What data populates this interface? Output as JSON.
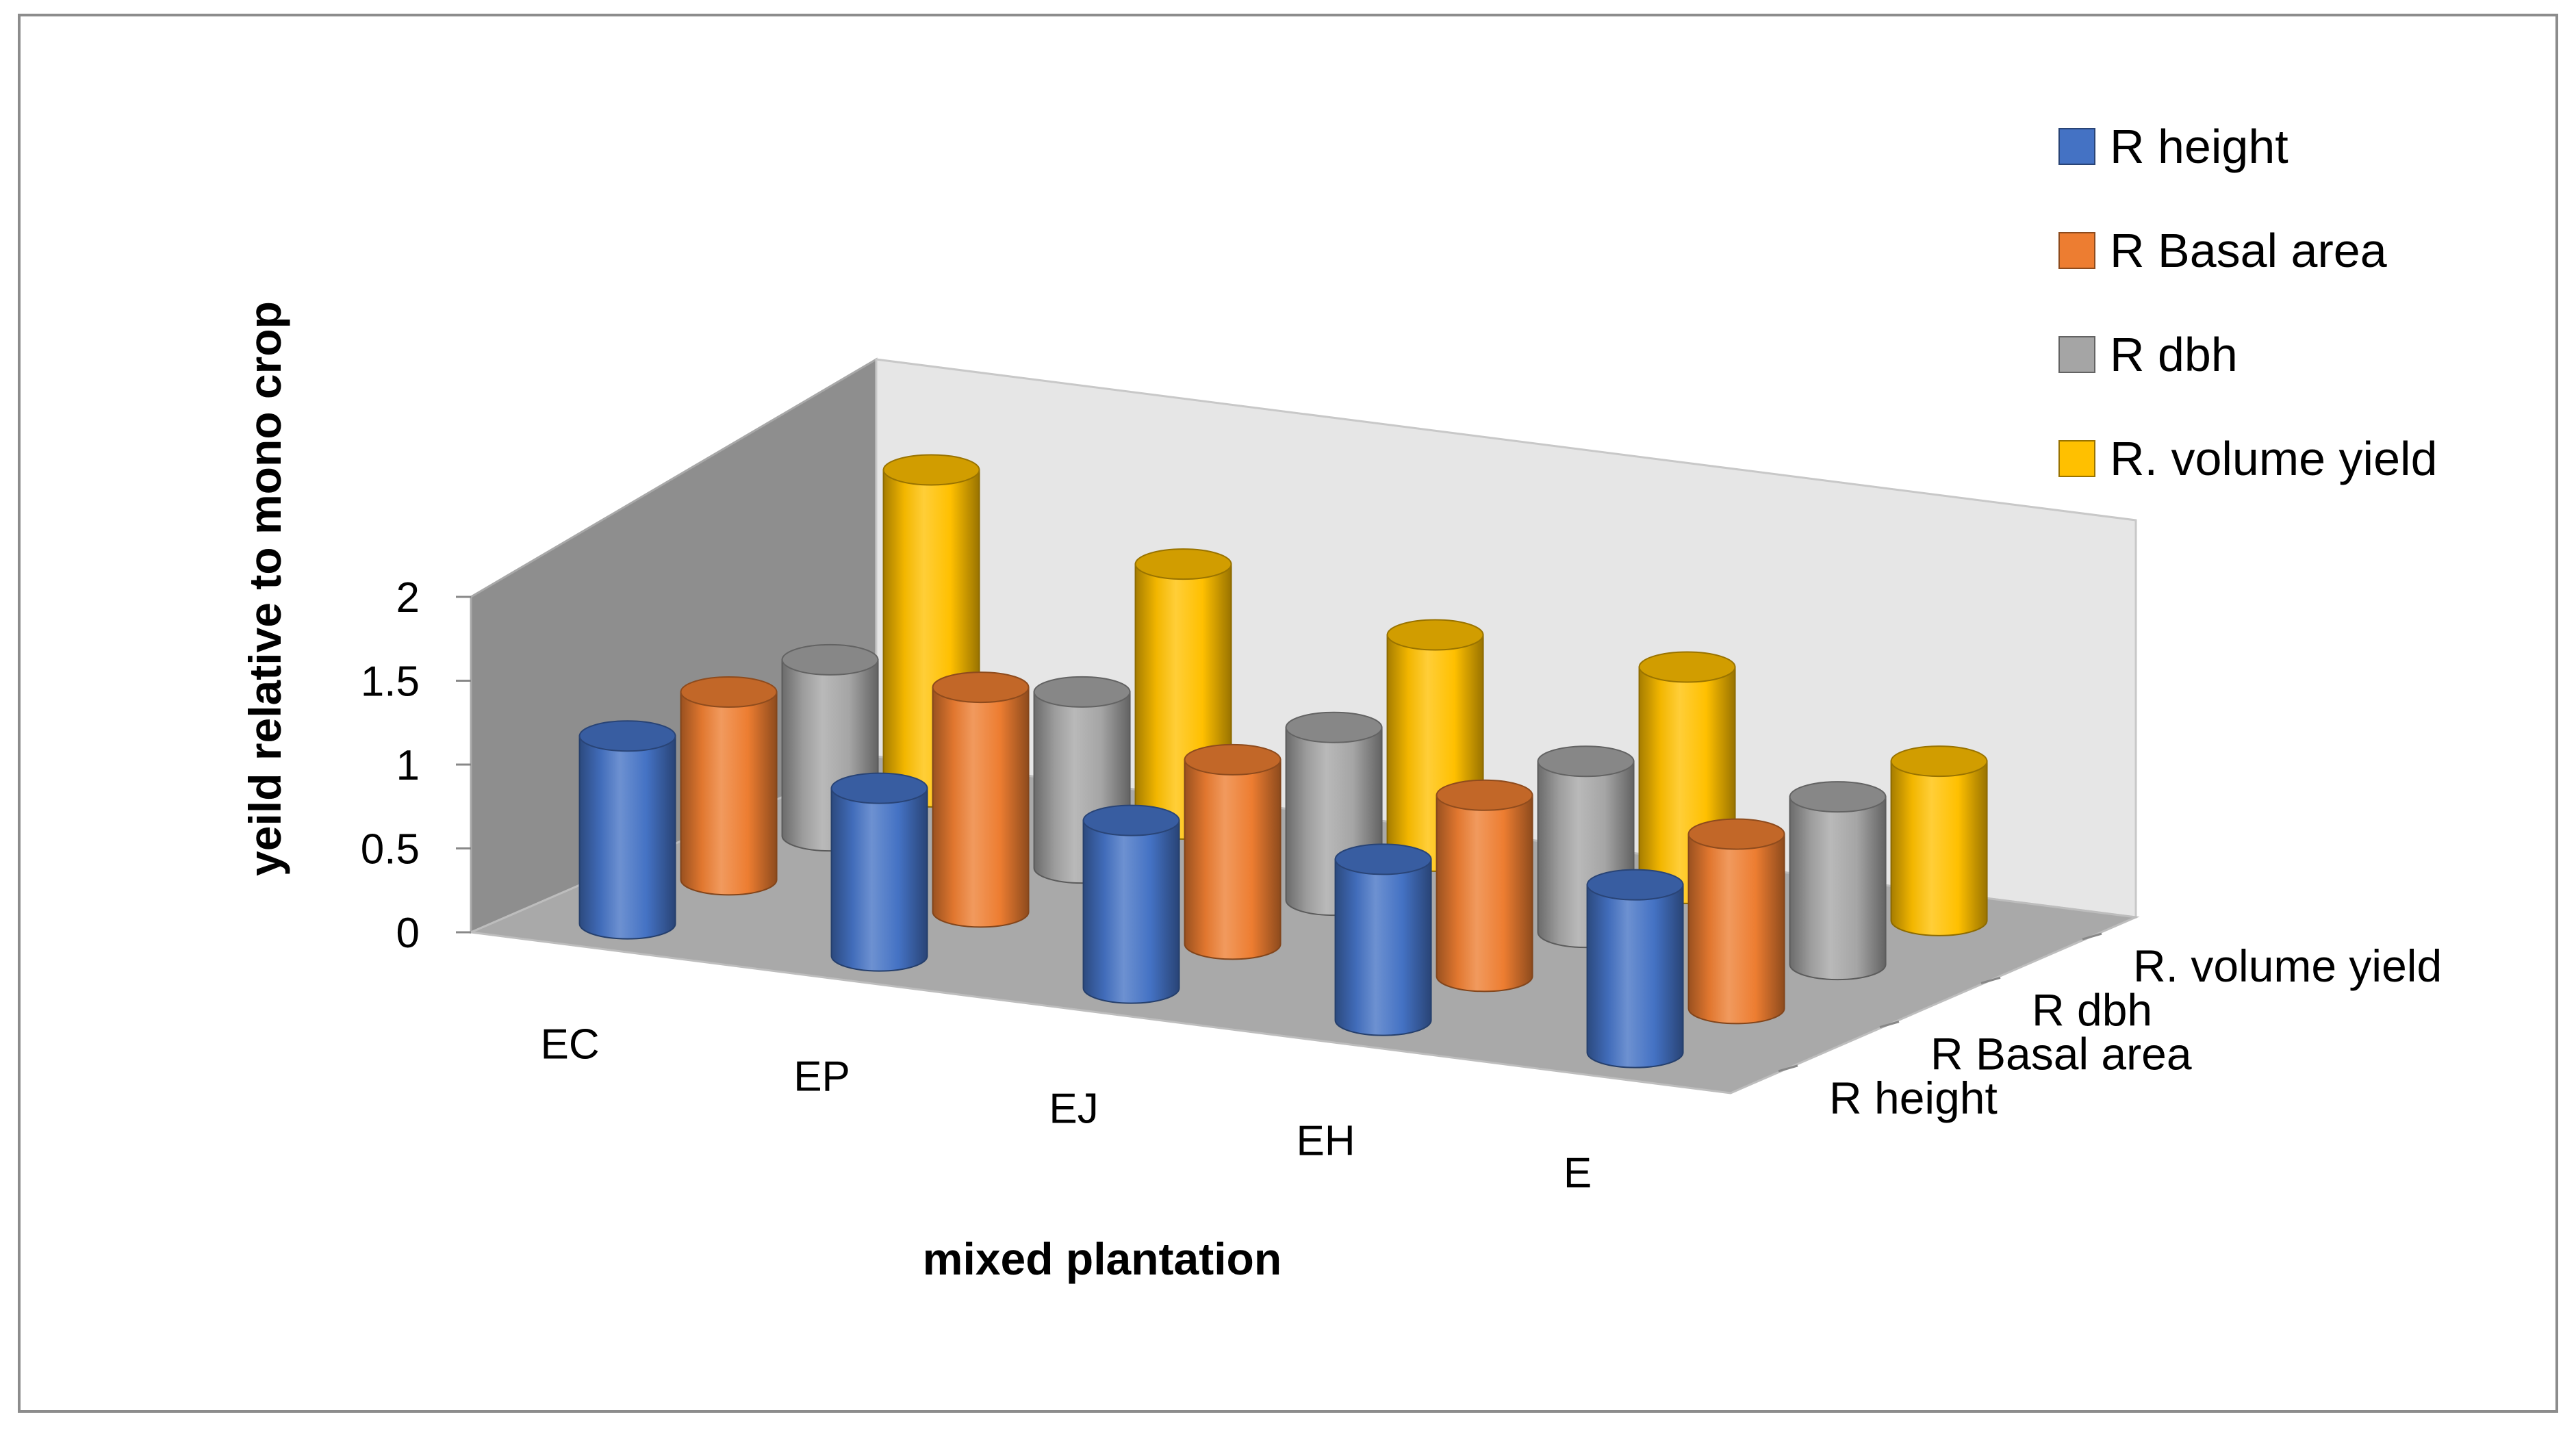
{
  "chart_data": {
    "type": "bar",
    "style": "3d-column",
    "title": "",
    "xlabel": "mixed plantation",
    "ylabel": "yeild  relative to mono crop",
    "ylim": [
      0,
      2
    ],
    "yticks": [
      "0",
      "0.5",
      "1",
      "1.5",
      "2"
    ],
    "categories": [
      "EC",
      "EP",
      "EJ",
      "EH",
      "E"
    ],
    "legend_position": "right",
    "series": [
      {
        "name": "R height",
        "color": "#4472C4",
        "values": [
          1.12,
          1.0,
          1.0,
          0.96,
          1.0
        ]
      },
      {
        "name": "R Basal area",
        "color": "#ED7D31",
        "values": [
          1.12,
          1.34,
          1.1,
          1.08,
          1.04
        ]
      },
      {
        "name": "R dbh",
        "color": "#A5A5A5",
        "values": [
          1.05,
          1.05,
          1.03,
          1.02,
          1.0
        ]
      },
      {
        "name": "R. volume yield",
        "color": "#FFC000",
        "values": [
          1.92,
          1.55,
          1.32,
          1.32,
          0.95
        ]
      }
    ]
  }
}
